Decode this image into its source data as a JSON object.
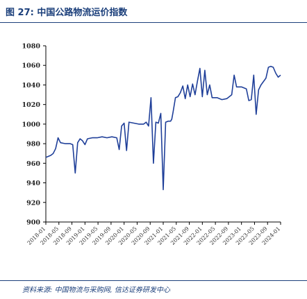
{
  "figure": {
    "title": "图 27:  中国公路物流运价指数",
    "source": "资料来源:  中国物流与采购网,  信达证券研发中心"
  },
  "chart_data": {
    "type": "line",
    "title": "",
    "xlabel": "",
    "ylabel": "",
    "ylim": [
      900,
      1080
    ],
    "yticks": [
      900,
      920,
      940,
      960,
      980,
      1000,
      1020,
      1040,
      1060,
      1080
    ],
    "xticks": [
      "2018-01",
      "2018-05",
      "2018-09",
      "2019-01",
      "2019-05",
      "2019-09",
      "2020-01",
      "2020-05",
      "2020-09",
      "2021-01",
      "2021-05",
      "2021-09",
      "2022-01",
      "2022-05",
      "2022-09",
      "2023-01",
      "2023-05",
      "2023-09",
      "2024-01"
    ],
    "grid": false,
    "line_color": "#1f3f99",
    "series": [
      {
        "name": "",
        "points": [
          [
            0,
            966
          ],
          [
            2,
            968
          ],
          [
            3,
            970
          ],
          [
            4,
            975
          ],
          [
            5,
            986
          ],
          [
            6,
            981
          ],
          [
            8,
            980
          ],
          [
            10,
            980
          ],
          [
            11,
            979
          ],
          [
            12,
            950
          ],
          [
            13,
            981
          ],
          [
            14,
            985
          ],
          [
            15,
            983
          ],
          [
            16,
            979
          ],
          [
            17,
            985
          ],
          [
            19,
            986
          ],
          [
            21,
            986
          ],
          [
            23,
            987
          ],
          [
            25,
            986
          ],
          [
            27,
            987
          ],
          [
            29,
            986
          ],
          [
            30,
            974
          ],
          [
            31,
            998
          ],
          [
            32,
            1001
          ],
          [
            33,
            973
          ],
          [
            34,
            1002
          ],
          [
            36,
            1001
          ],
          [
            38,
            1000
          ],
          [
            40,
            1000
          ],
          [
            41,
            1002
          ],
          [
            42,
            998
          ],
          [
            43,
            1027
          ],
          [
            44,
            960
          ],
          [
            45,
            1002
          ],
          [
            46,
            1001
          ],
          [
            47,
            1011
          ],
          [
            48,
            933
          ],
          [
            49,
            1002
          ],
          [
            50,
            1003
          ],
          [
            51,
            1003
          ],
          [
            51.5,
            1005
          ],
          [
            52,
            1012
          ],
          [
            53,
            1027
          ],
          [
            54,
            1028
          ],
          [
            55,
            1032
          ],
          [
            56,
            1039
          ],
          [
            57,
            1026
          ],
          [
            58,
            1040
          ],
          [
            59,
            1028
          ],
          [
            60,
            1041
          ],
          [
            61,
            1030
          ],
          [
            62,
            1044
          ],
          [
            63,
            1057
          ],
          [
            64,
            1028
          ],
          [
            65,
            1055
          ],
          [
            66,
            1030
          ],
          [
            67,
            1040
          ],
          [
            68,
            1027
          ],
          [
            70,
            1027
          ],
          [
            72,
            1025
          ],
          [
            74,
            1026
          ],
          [
            76,
            1030
          ],
          [
            77,
            1050
          ],
          [
            78,
            1038
          ],
          [
            80,
            1038
          ],
          [
            82,
            1036
          ],
          [
            83,
            1024
          ],
          [
            84,
            1025
          ],
          [
            85,
            1050
          ],
          [
            86,
            1010
          ],
          [
            87,
            1035
          ],
          [
            88,
            1040
          ],
          [
            90,
            1047
          ],
          [
            91,
            1058
          ],
          [
            92,
            1059
          ],
          [
            93,
            1058
          ],
          [
            94,
            1052
          ],
          [
            95,
            1048
          ],
          [
            96,
            1050
          ]
        ]
      }
    ]
  }
}
